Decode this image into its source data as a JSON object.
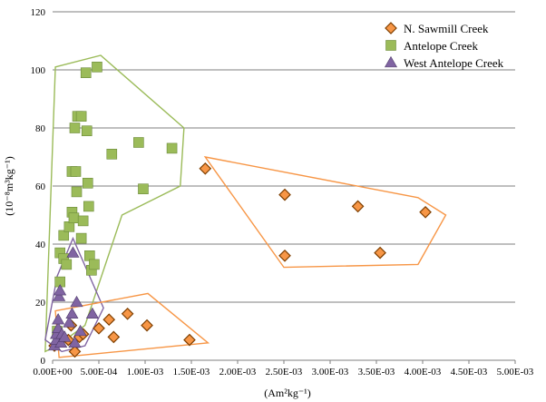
{
  "chart_data": {
    "type": "scatter",
    "title": "",
    "xlabel": "(Am²kg⁻¹)",
    "ylabel": "(10⁻⁸m³kg⁻¹)",
    "xlim": [
      0,
      0.005
    ],
    "ylim": [
      0,
      120
    ],
    "x_tick_labels": [
      "0.00E+00",
      "5.00E-04",
      "1.00E-03",
      "1.50E-03",
      "2.00E-03",
      "2.50E-03",
      "3.00E-03",
      "3.50E-03",
      "4.00E-03",
      "4.50E-03",
      "5.00E-03"
    ],
    "y_tick_labels": [
      "0",
      "20",
      "40",
      "60",
      "80",
      "100",
      "120"
    ],
    "grid": "horizontal",
    "legend_position": "top-right",
    "series": [
      {
        "name": "N. Sawmill Creek",
        "marker": "diamond",
        "color": "#f79646",
        "edge_color": "#7f3f00",
        "points": [
          [
            2e-05,
            5
          ],
          [
            0.00017,
            7
          ],
          [
            0.0002,
            12
          ],
          [
            0.00024,
            3
          ],
          [
            0.00029,
            8
          ],
          [
            0.00033,
            9
          ],
          [
            0.0005,
            11
          ],
          [
            0.00061,
            14
          ],
          [
            0.00066,
            8
          ],
          [
            0.00081,
            16
          ],
          [
            0.00102,
            12
          ],
          [
            0.00148,
            7
          ],
          [
            0.00165,
            66
          ],
          [
            0.00251,
            57
          ],
          [
            0.00251,
            36
          ],
          [
            0.0033,
            53
          ],
          [
            0.00354,
            37
          ],
          [
            0.00403,
            51
          ]
        ]
      },
      {
        "name": "Antelope Creek",
        "marker": "square",
        "color": "#9bbb59",
        "edge_color": "#6b8a3a",
        "points": [
          [
            5e-05,
            10
          ],
          [
            8e-05,
            27
          ],
          [
            8e-05,
            37
          ],
          [
            0.00012,
            35
          ],
          [
            0.00012,
            43
          ],
          [
            0.00015,
            33
          ],
          [
            0.00018,
            46
          ],
          [
            0.00021,
            51
          ],
          [
            0.00021,
            65
          ],
          [
            0.00023,
            49
          ],
          [
            0.00024,
            80
          ],
          [
            0.00025,
            65
          ],
          [
            0.00026,
            58
          ],
          [
            0.00027,
            84
          ],
          [
            0.00031,
            42
          ],
          [
            0.00031,
            84
          ],
          [
            0.00033,
            48
          ],
          [
            0.00036,
            99
          ],
          [
            0.00037,
            79
          ],
          [
            0.00038,
            61
          ],
          [
            0.00039,
            53
          ],
          [
            0.0004,
            36
          ],
          [
            0.00042,
            31
          ],
          [
            0.00045,
            33
          ],
          [
            0.00048,
            101
          ],
          [
            0.00064,
            71
          ],
          [
            0.00093,
            75
          ],
          [
            0.00098,
            59
          ],
          [
            0.00129,
            73
          ]
        ]
      },
      {
        "name": "West Antelope Creek",
        "marker": "triangle",
        "color": "#8064a2",
        "edge_color": "#4f3b6b",
        "points": [
          [
            2e-05,
            5
          ],
          [
            4e-05,
            7
          ],
          [
            4e-05,
            9
          ],
          [
            6e-05,
            11
          ],
          [
            6e-05,
            14
          ],
          [
            7e-05,
            22
          ],
          [
            8e-05,
            24
          ],
          [
            9e-05,
            6
          ],
          [
            0.0001,
            9
          ],
          [
            0.00013,
            8
          ],
          [
            0.00018,
            13
          ],
          [
            0.00021,
            16
          ],
          [
            0.00022,
            37
          ],
          [
            0.00024,
            6
          ],
          [
            0.00026,
            20
          ],
          [
            0.0003,
            10
          ],
          [
            0.00043,
            16
          ]
        ]
      }
    ],
    "envelopes": [
      {
        "series": "Antelope Creek",
        "color": "#9bbb59",
        "points": [
          [
            -8e-05,
            3
          ],
          [
            3e-05,
            101
          ],
          [
            0.00052,
            105
          ],
          [
            0.00142,
            80
          ],
          [
            0.00138,
            60
          ],
          [
            0.00075,
            50
          ],
          [
            0.00035,
            12
          ],
          [
            5e-05,
            5
          ]
        ]
      },
      {
        "series": "West Antelope Creek",
        "color": "#8064a2",
        "points": [
          [
            -8e-05,
            7
          ],
          [
            5e-05,
            29
          ],
          [
            0.00022,
            42
          ],
          [
            0.00055,
            18
          ],
          [
            0.00035,
            5
          ],
          [
            0.0001,
            3
          ]
        ]
      },
      {
        "series": "N. Sawmill Creek",
        "color": "#f79646",
        "points": [
          [
            3e-05,
            17
          ],
          [
            0.00103,
            23
          ],
          [
            0.00168,
            6
          ],
          [
            7e-05,
            1
          ]
        ]
      },
      {
        "series": "N. Sawmill Creek",
        "color": "#f79646",
        "points": [
          [
            0.00165,
            70
          ],
          [
            0.00395,
            56
          ],
          [
            0.00425,
            50
          ],
          [
            0.00395,
            33
          ],
          [
            0.0025,
            32
          ]
        ]
      }
    ]
  }
}
